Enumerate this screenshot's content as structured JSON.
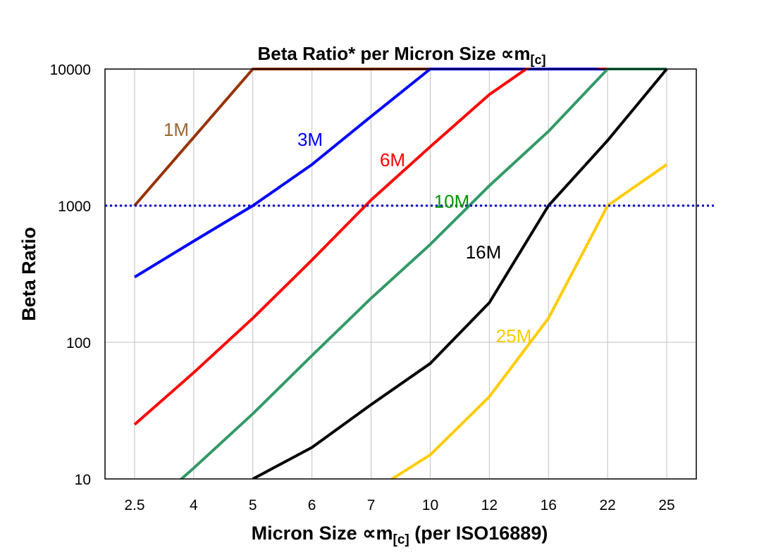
{
  "chart_data": {
    "type": "line",
    "title": "Beta Ratio* per Micron Size ∝m",
    "title_subscript": "[c]",
    "xlabel": "Micron Size ∝m",
    "xlabel_subscript": "[c]",
    "xlabel_suffix": " (per ISO16889)",
    "ylabel": "Beta Ratio",
    "yscale": "log",
    "ylim": [
      10,
      10000
    ],
    "yticks": [
      "10",
      "100",
      "1000",
      "10000"
    ],
    "categories": [
      "2.5",
      "4",
      "5",
      "6",
      "7",
      "10",
      "12",
      "16",
      "22",
      "25"
    ],
    "grid": true,
    "reference_line": {
      "y": 1000,
      "color": "#0000cc",
      "style": "dotted"
    },
    "series": [
      {
        "name": "1M",
        "color": "#993300",
        "label_color": "#996633",
        "values": [
          1000,
          3162,
          10000,
          10000,
          10000,
          10000,
          10000,
          10000,
          10000,
          10000
        ]
      },
      {
        "name": "3M",
        "color": "#0000ff",
        "label_color": "#0000ff",
        "values": [
          300,
          550,
          1000,
          2000,
          4500,
          10000,
          10000,
          10000,
          10000,
          10000
        ]
      },
      {
        "name": "6M",
        "color": "#ff0000",
        "label_color": "#ff0000",
        "values": [
          25,
          60,
          150,
          400,
          1100,
          2700,
          6500,
          13000,
          10000,
          10000
        ]
      },
      {
        "name": "10M",
        "color": "#339966",
        "label_color": "#009900",
        "values": [
          5,
          12,
          30,
          80,
          210,
          520,
          1400,
          3500,
          10000,
          10000
        ]
      },
      {
        "name": "16M",
        "color": "#000000",
        "label_color": "#000000",
        "values": [
          null,
          null,
          10,
          17,
          35,
          70,
          195,
          1000,
          3000,
          10000
        ]
      },
      {
        "name": "25M",
        "color": "#ffcc00",
        "label_color": "#ffcc00",
        "values": [
          null,
          null,
          null,
          null,
          8,
          15,
          40,
          150,
          1000,
          2000
        ]
      }
    ]
  }
}
